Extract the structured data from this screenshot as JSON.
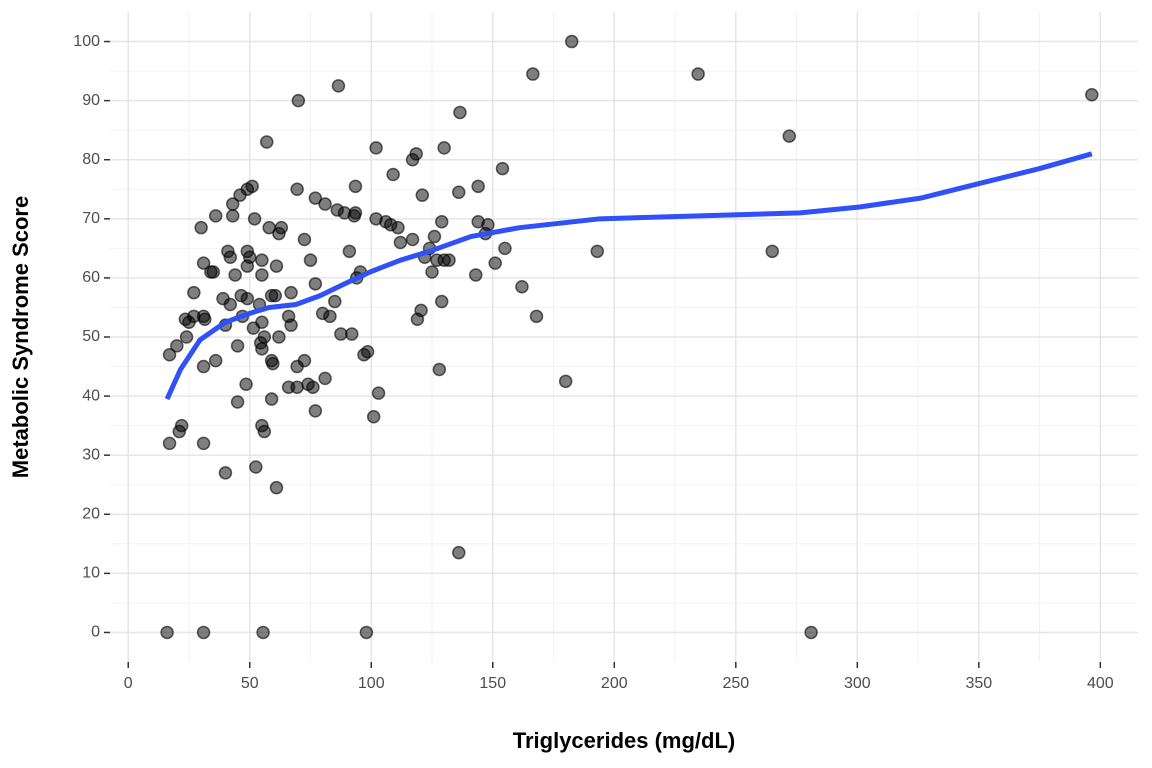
{
  "chart_data": {
    "type": "scatter",
    "x_label": "Triglycerides (mg/dL)",
    "y_label": "Metabolic Syndrome Score",
    "xlim": [
      -7.5,
      415.5
    ],
    "ylim": [
      -5,
      105
    ],
    "xticks": [
      0,
      50,
      100,
      150,
      200,
      250,
      300,
      350,
      400
    ],
    "yticks": [
      0,
      10,
      20,
      30,
      40,
      50,
      60,
      70,
      80,
      90,
      100
    ],
    "grid": true,
    "minor_grid": true,
    "series": [
      {
        "color": "#000000",
        "x": [
          16,
          31,
          55.5,
          98,
          281,
          136,
          40,
          52.5,
          61,
          31,
          17,
          21,
          22,
          55,
          56,
          101,
          103,
          45,
          59,
          66,
          69.5,
          48.5,
          74,
          76,
          72.5,
          77,
          81,
          180,
          128,
          59,
          59.5,
          69.5,
          36,
          31,
          45,
          17,
          20,
          97,
          98.5,
          24,
          55,
          54.5,
          56,
          62,
          87.5,
          92,
          51.5,
          40,
          67,
          23.5,
          25,
          31,
          31.5,
          47,
          55,
          66,
          27,
          83,
          80,
          119,
          120.5,
          168,
          162,
          129,
          85,
          42,
          39,
          49,
          46.5,
          27,
          54,
          59,
          60.5,
          67,
          77,
          44,
          55,
          35,
          34,
          31,
          49,
          55,
          50,
          61,
          42,
          49,
          41,
          75,
          91,
          94,
          95.5,
          125,
          124,
          127,
          132,
          130,
          143,
          151,
          155,
          122,
          112,
          117,
          126,
          111,
          102,
          106,
          108,
          129,
          144,
          148,
          147,
          193,
          265,
          62,
          63,
          72.5,
          58,
          30,
          52,
          43,
          36,
          43,
          81,
          77,
          86,
          89,
          93,
          93.5,
          136,
          121,
          46,
          49,
          51,
          69.5,
          93.5,
          144,
          109,
          154,
          117,
          118.5,
          130,
          102,
          57,
          272,
          136.5,
          70,
          86.5,
          166.5,
          234.5,
          182.5,
          396.5
        ],
        "values": [
          0,
          0,
          0,
          0,
          0,
          13.5,
          27,
          28,
          24.5,
          32,
          32,
          34,
          35,
          35,
          34,
          36.5,
          40.5,
          39,
          39.5,
          41.5,
          41.5,
          42,
          42,
          41.5,
          46,
          37.5,
          43,
          42.5,
          44.5,
          46,
          45.5,
          45,
          46,
          45,
          48.5,
          47,
          48.5,
          47,
          47.5,
          50,
          48,
          49,
          50,
          50,
          50.5,
          50.5,
          51.5,
          52,
          52,
          53,
          52.5,
          53.5,
          53,
          53.5,
          52.5,
          53.5,
          53.5,
          53.5,
          54,
          53,
          54.5,
          53.5,
          58.5,
          56,
          56,
          55.5,
          56.5,
          56.5,
          57,
          57.5,
          55.5,
          57,
          57,
          57.5,
          59,
          60.5,
          60.5,
          61,
          61,
          62.5,
          62,
          63,
          63.5,
          62,
          63.5,
          64.5,
          64.5,
          63,
          64.5,
          60,
          61,
          61,
          65,
          63,
          63,
          63,
          60.5,
          62.5,
          65,
          63.5,
          66,
          66.5,
          67,
          68.5,
          70,
          69.5,
          69,
          69.5,
          69.5,
          69,
          67.5,
          64.5,
          64.5,
          67.5,
          68.5,
          66.5,
          68.5,
          68.5,
          70,
          70.5,
          70.5,
          72.5,
          72.5,
          73.5,
          71.5,
          71,
          70.5,
          71,
          74.5,
          74,
          74,
          75,
          75.5,
          75,
          75.5,
          75.5,
          77.5,
          78.5,
          80,
          81,
          82,
          82,
          83,
          84,
          88,
          90,
          92.5,
          94.5,
          94.5,
          100,
          91
        ]
      }
    ],
    "smooth": {
      "color": "#3050f8",
      "x": [
        16,
        21.5,
        29.5,
        40,
        50,
        58,
        69,
        79,
        89,
        99.5,
        112,
        124,
        141,
        161,
        194,
        235,
        276.5,
        301,
        326,
        350.5,
        375,
        396.5
      ],
      "values": [
        39.5,
        44.5,
        49.5,
        52.5,
        54,
        55,
        55.5,
        57,
        59,
        61,
        63,
        64.5,
        67,
        68.5,
        70,
        70.5,
        71,
        72,
        73.5,
        76,
        78.5,
        81
      ]
    }
  }
}
